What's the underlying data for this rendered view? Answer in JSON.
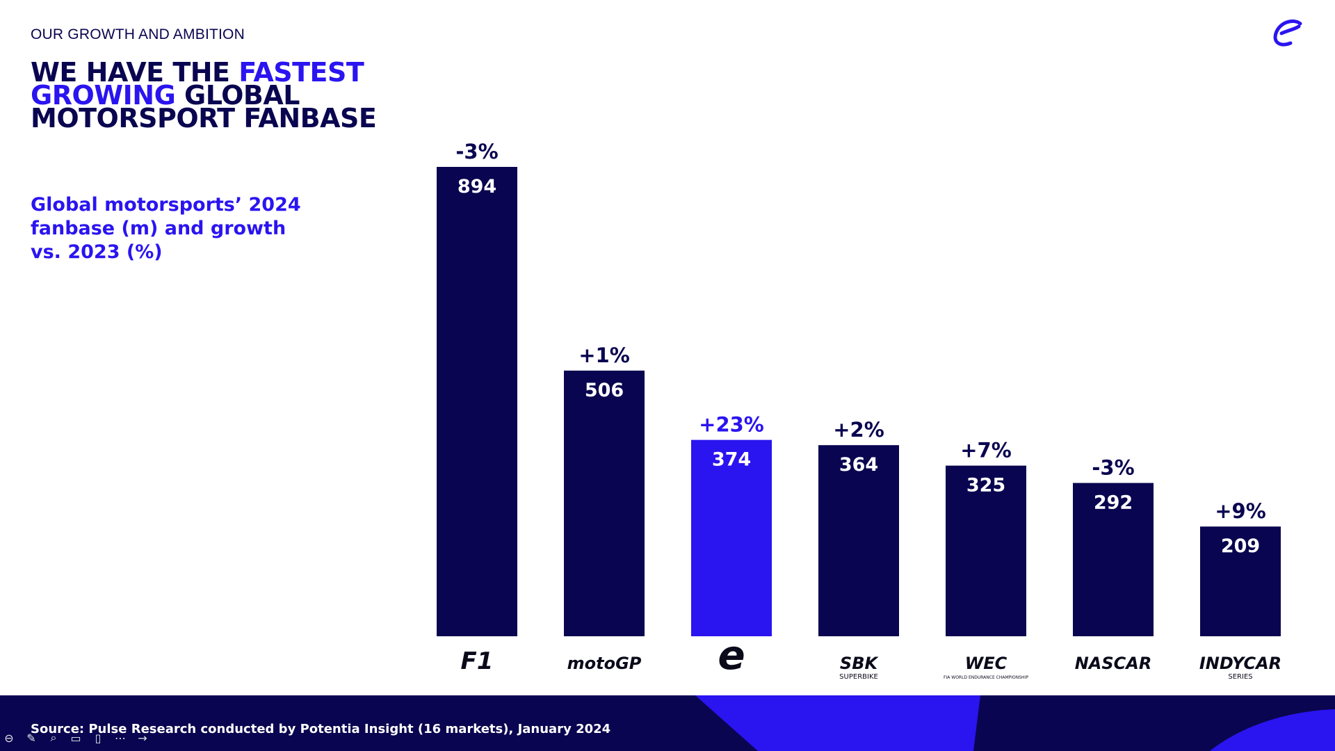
{
  "header": {
    "kicker": "OUR GROWTH AND AMBITION",
    "headline_part1": "WE HAVE THE ",
    "headline_highlight": "FASTEST GROWING",
    "headline_part2": " GLOBAL MOTORSPORT FANBASE"
  },
  "subtitle": "Global motorsports’ 2024 fanbase (m) and growth vs. 2023 (%)",
  "footer": {
    "source": "Source: Pulse Research conducted by Potentia Insight (16 markets), January 2024"
  },
  "colors": {
    "navy": "#0a0550",
    "accent": "#2a14f0",
    "footer_bg": "#0a0550"
  },
  "chart_data": {
    "type": "bar",
    "title": "Global motorsports’ 2024 fanbase (m) and growth vs. 2023 (%)",
    "categories": [
      "F1",
      "MotoGP",
      "Formula E",
      "WorldSBK",
      "FIA WEC",
      "NASCAR",
      "IndyCar Series"
    ],
    "values": [
      894,
      506,
      374,
      364,
      325,
      292,
      209
    ],
    "value_labels": [
      "894",
      "506",
      "374",
      "364",
      "325",
      "292",
      "209"
    ],
    "growth_labels": [
      "-3%",
      "+1%",
      "+23%",
      "+2%",
      "+7%",
      "-3%",
      "+9%"
    ],
    "highlight_index": 2,
    "logo_texts": [
      "F1",
      "motoGP",
      "e",
      "SBK",
      "WEC",
      "NASCAR",
      "INDYCAR"
    ],
    "logo_subtexts": [
      "",
      "",
      "",
      "SUPERBIKE",
      "FIA WORLD ENDURANCE CHAMPIONSHIP",
      "",
      "SERIES"
    ],
    "ylim": [
      0,
      894
    ],
    "xlabel": "",
    "ylabel": ""
  }
}
